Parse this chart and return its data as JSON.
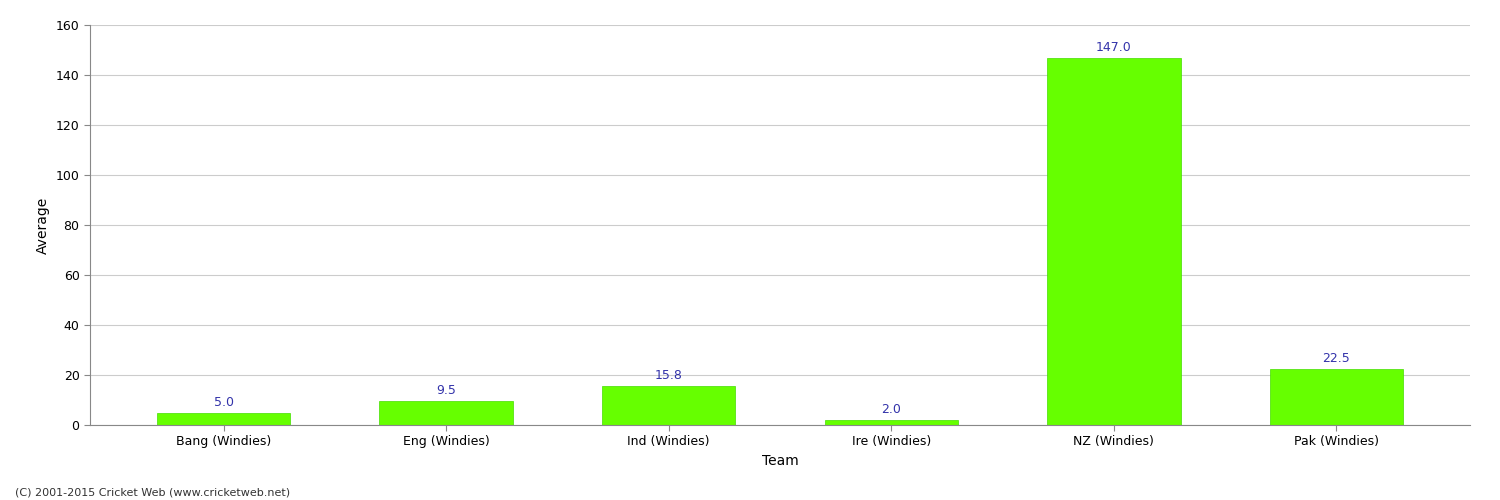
{
  "categories": [
    "Bang (Windies)",
    "Eng (Windies)",
    "Ind (Windies)",
    "Ire (Windies)",
    "NZ (Windies)",
    "Pak (Windies)"
  ],
  "values": [
    5.0,
    9.5,
    15.8,
    2.0,
    147.0,
    22.5
  ],
  "bar_color": "#66ff00",
  "bar_edge_color": "#44dd00",
  "label_color": "#3333aa",
  "xlabel": "Team",
  "ylabel": "Average",
  "ylim": [
    0,
    160
  ],
  "yticks": [
    0,
    20,
    40,
    60,
    80,
    100,
    120,
    140,
    160
  ],
  "background_color": "#ffffff",
  "grid_color": "#cccccc",
  "footer": "(C) 2001-2015 Cricket Web (www.cricketweb.net)",
  "label_fontsize": 9,
  "axis_label_fontsize": 10,
  "tick_fontsize": 9,
  "footer_fontsize": 8,
  "bar_width": 0.6
}
